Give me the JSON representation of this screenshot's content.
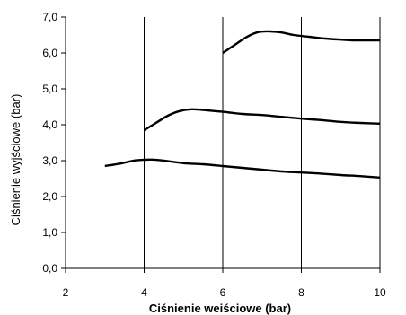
{
  "chart_data": {
    "type": "line",
    "title": "",
    "xlabel": "Ciśnienie weiściowe (bar)",
    "ylabel": "Ciśnienie wyjściowe (bar)",
    "xlim": [
      2,
      10
    ],
    "ylim": [
      0,
      7
    ],
    "x_ticks": [
      2,
      4,
      6,
      8,
      10
    ],
    "x_tick_labels": [
      "2",
      "4",
      "6",
      "8",
      "10"
    ],
    "y_ticks": [
      0,
      1,
      2,
      3,
      4,
      5,
      6,
      7
    ],
    "y_tick_labels": [
      "0,0",
      "1,0",
      "2,0",
      "3,0",
      "4,0",
      "5,0",
      "6,0",
      "7,0"
    ],
    "grid": "vertical lines at x ticks",
    "legend": "none",
    "line_color": "#000000",
    "series": [
      {
        "x": [
          3.0,
          3.4,
          3.8,
          4.2,
          4.5,
          5.0,
          5.5,
          6.0,
          6.5,
          7.0,
          7.5,
          8.0,
          8.5,
          9.0,
          9.5,
          10.0
        ],
        "y": [
          2.85,
          2.92,
          3.01,
          3.03,
          3.0,
          2.93,
          2.9,
          2.85,
          2.8,
          2.75,
          2.7,
          2.67,
          2.64,
          2.6,
          2.57,
          2.53
        ]
      },
      {
        "x": [
          4.0,
          4.3,
          4.6,
          4.9,
          5.2,
          5.5,
          6.0,
          6.5,
          7.0,
          7.5,
          8.0,
          8.5,
          9.0,
          9.5,
          10.0
        ],
        "y": [
          3.85,
          4.05,
          4.25,
          4.38,
          4.43,
          4.41,
          4.36,
          4.3,
          4.27,
          4.22,
          4.17,
          4.13,
          4.08,
          4.05,
          4.03
        ]
      },
      {
        "x": [
          6.0,
          6.3,
          6.6,
          6.9,
          7.2,
          7.5,
          7.8,
          8.2,
          8.6,
          9.0,
          9.3,
          9.6,
          10.0
        ],
        "y": [
          6.0,
          6.22,
          6.44,
          6.58,
          6.6,
          6.57,
          6.5,
          6.45,
          6.4,
          6.37,
          6.35,
          6.35,
          6.35
        ]
      }
    ]
  }
}
